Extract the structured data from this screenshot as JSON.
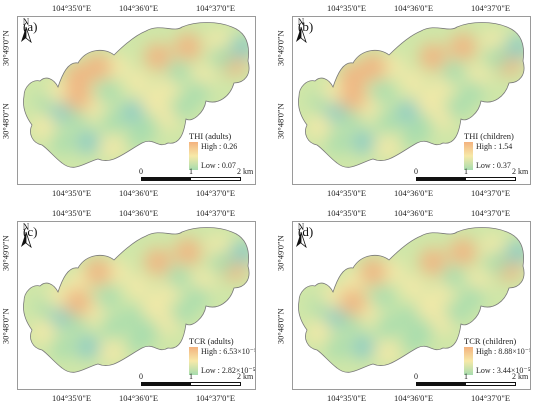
{
  "coords": {
    "lon": [
      "104°35'0\"E",
      "104°36'0\"E",
      "104°37'0\"E"
    ],
    "lat": [
      "30°49'0\"N",
      "30°48'0\"N"
    ]
  },
  "north_label": "N",
  "scale": {
    "t0": "0",
    "t1": "1",
    "t2": "2 km"
  },
  "palette": {
    "high": "#f3b27f",
    "mid": "#f7e9a8",
    "low": "#a6dcae",
    "lowest": "#86c9c6"
  },
  "panels": [
    {
      "label": "(a)",
      "legend_title": "THI (adults)",
      "high": "High : 0.26",
      "low": "Low : 0.07"
    },
    {
      "label": "(b)",
      "legend_title": "THI (children)",
      "high": "High : 1.54",
      "low": "Low : 0.37"
    },
    {
      "label": "(c)",
      "legend_title": "TCR (adults)",
      "high": "High : 6.53×10⁻⁵",
      "low": "Low : 2.82×10⁻⁵"
    },
    {
      "label": "(d)",
      "legend_title": "TCR (children)",
      "high": "High : 8.88×10⁻⁵",
      "low": "Low : 3.44×10⁻⁵"
    }
  ]
}
